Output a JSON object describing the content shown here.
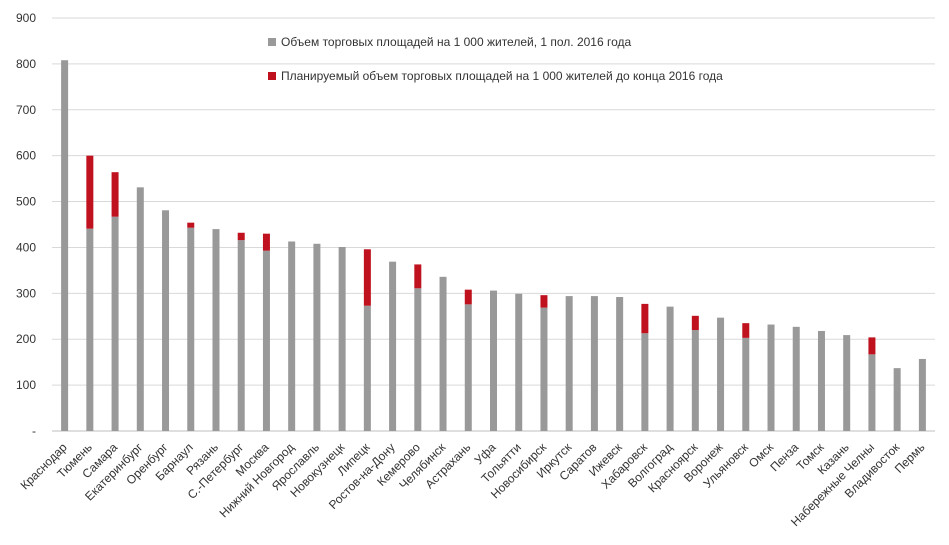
{
  "chart_data": {
    "type": "bar",
    "stacked": true,
    "categories": [
      "Краснодар",
      "Тюмень",
      "Самара",
      "Екатеринбург",
      "Оренбург",
      "Барнаул",
      "Рязань",
      "С.-Петербург",
      "Москва",
      "Нижний Новгород",
      "Ярославль",
      "Новокузнецк",
      "Липецк",
      "Ростов-на-Дону",
      "Кемерово",
      "Челябинск",
      "Астрахань",
      "Уфа",
      "Тольятти",
      "Новосибирск",
      "Иркутск",
      "Саратов",
      "Ижевск",
      "Хабаровск",
      "Волгоград",
      "Красноярск",
      "Воронеж",
      "Ульяновск",
      "Омск",
      "Пенза",
      "Томск",
      "Казань",
      "Набережные Челны",
      "Владивосток",
      "Пермь"
    ],
    "series": [
      {
        "name": "Объем торговых площадей на 1 000 жителей, 1 пол. 2016 года",
        "color": "#999999",
        "values": [
          808,
          441,
          467,
          531,
          481,
          443,
          440,
          416,
          393,
          413,
          408,
          401,
          273,
          369,
          311,
          336,
          276,
          306,
          299,
          269,
          294,
          294,
          292,
          213,
          271,
          220,
          247,
          203,
          232,
          227,
          218,
          209,
          167,
          137,
          157
        ]
      },
      {
        "name": "Планируемый объем торговых площадей на 1 000 жителей до конца 2016 года",
        "color": "#c0121e",
        "values": [
          0,
          159,
          97,
          0,
          0,
          11,
          0,
          16,
          37,
          0,
          0,
          0,
          123,
          0,
          52,
          0,
          32,
          0,
          0,
          27,
          0,
          0,
          0,
          64,
          0,
          31,
          0,
          32,
          0,
          0,
          0,
          0,
          37,
          0,
          0
        ]
      }
    ],
    "yticks": [
      "-",
      "100",
      "200",
      "300",
      "400",
      "500",
      "600",
      "700",
      "800",
      "900"
    ],
    "ylim": [
      0,
      900
    ],
    "grid": true,
    "legend_position": "top"
  }
}
